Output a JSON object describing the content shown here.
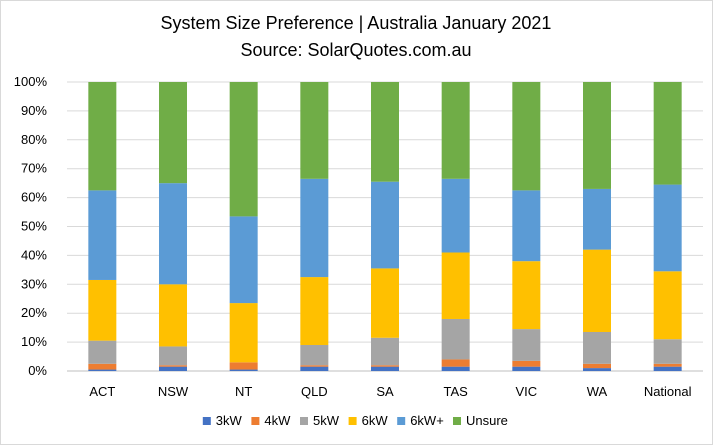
{
  "chart_data": {
    "type": "bar",
    "stacked": true,
    "title": "System Size Preference  | Australia January 2021",
    "subtitle": "Source: SolarQuotes.com.au",
    "categories": [
      "ACT",
      "NSW",
      "NT",
      "QLD",
      "SA",
      "TAS",
      "VIC",
      "WA",
      "National"
    ],
    "ylim": [
      0,
      100
    ],
    "yticks": [
      "0%",
      "10%",
      "20%",
      "30%",
      "40%",
      "50%",
      "60%",
      "70%",
      "80%",
      "90%",
      "100%"
    ],
    "grid": true,
    "legend_position": "bottom",
    "series": [
      {
        "name": "3kW",
        "color": "#4472C4",
        "values": [
          0.5,
          1.5,
          0.5,
          1.5,
          1.5,
          1.5,
          1.5,
          1.0,
          1.5
        ]
      },
      {
        "name": "4kW",
        "color": "#ED7D31",
        "values": [
          2.0,
          0.5,
          2.5,
          0.5,
          0.5,
          2.5,
          2.0,
          1.5,
          1.0
        ]
      },
      {
        "name": "5kW",
        "color": "#A5A5A5",
        "values": [
          8.0,
          6.5,
          0.0,
          7.0,
          9.5,
          14.0,
          11.0,
          11.0,
          8.5
        ]
      },
      {
        "name": "6kW",
        "color": "#FFC000",
        "values": [
          21.0,
          21.5,
          20.5,
          23.5,
          24.0,
          23.0,
          23.5,
          28.5,
          23.5
        ]
      },
      {
        "name": "6kW+",
        "color": "#5B9BD5",
        "values": [
          31.0,
          35.0,
          30.0,
          34.0,
          30.0,
          25.5,
          24.5,
          21.0,
          30.0
        ]
      },
      {
        "name": "Unsure",
        "color": "#70AD47",
        "values": [
          37.5,
          35.0,
          46.5,
          33.5,
          34.5,
          33.5,
          37.5,
          37.0,
          35.5
        ]
      }
    ]
  }
}
